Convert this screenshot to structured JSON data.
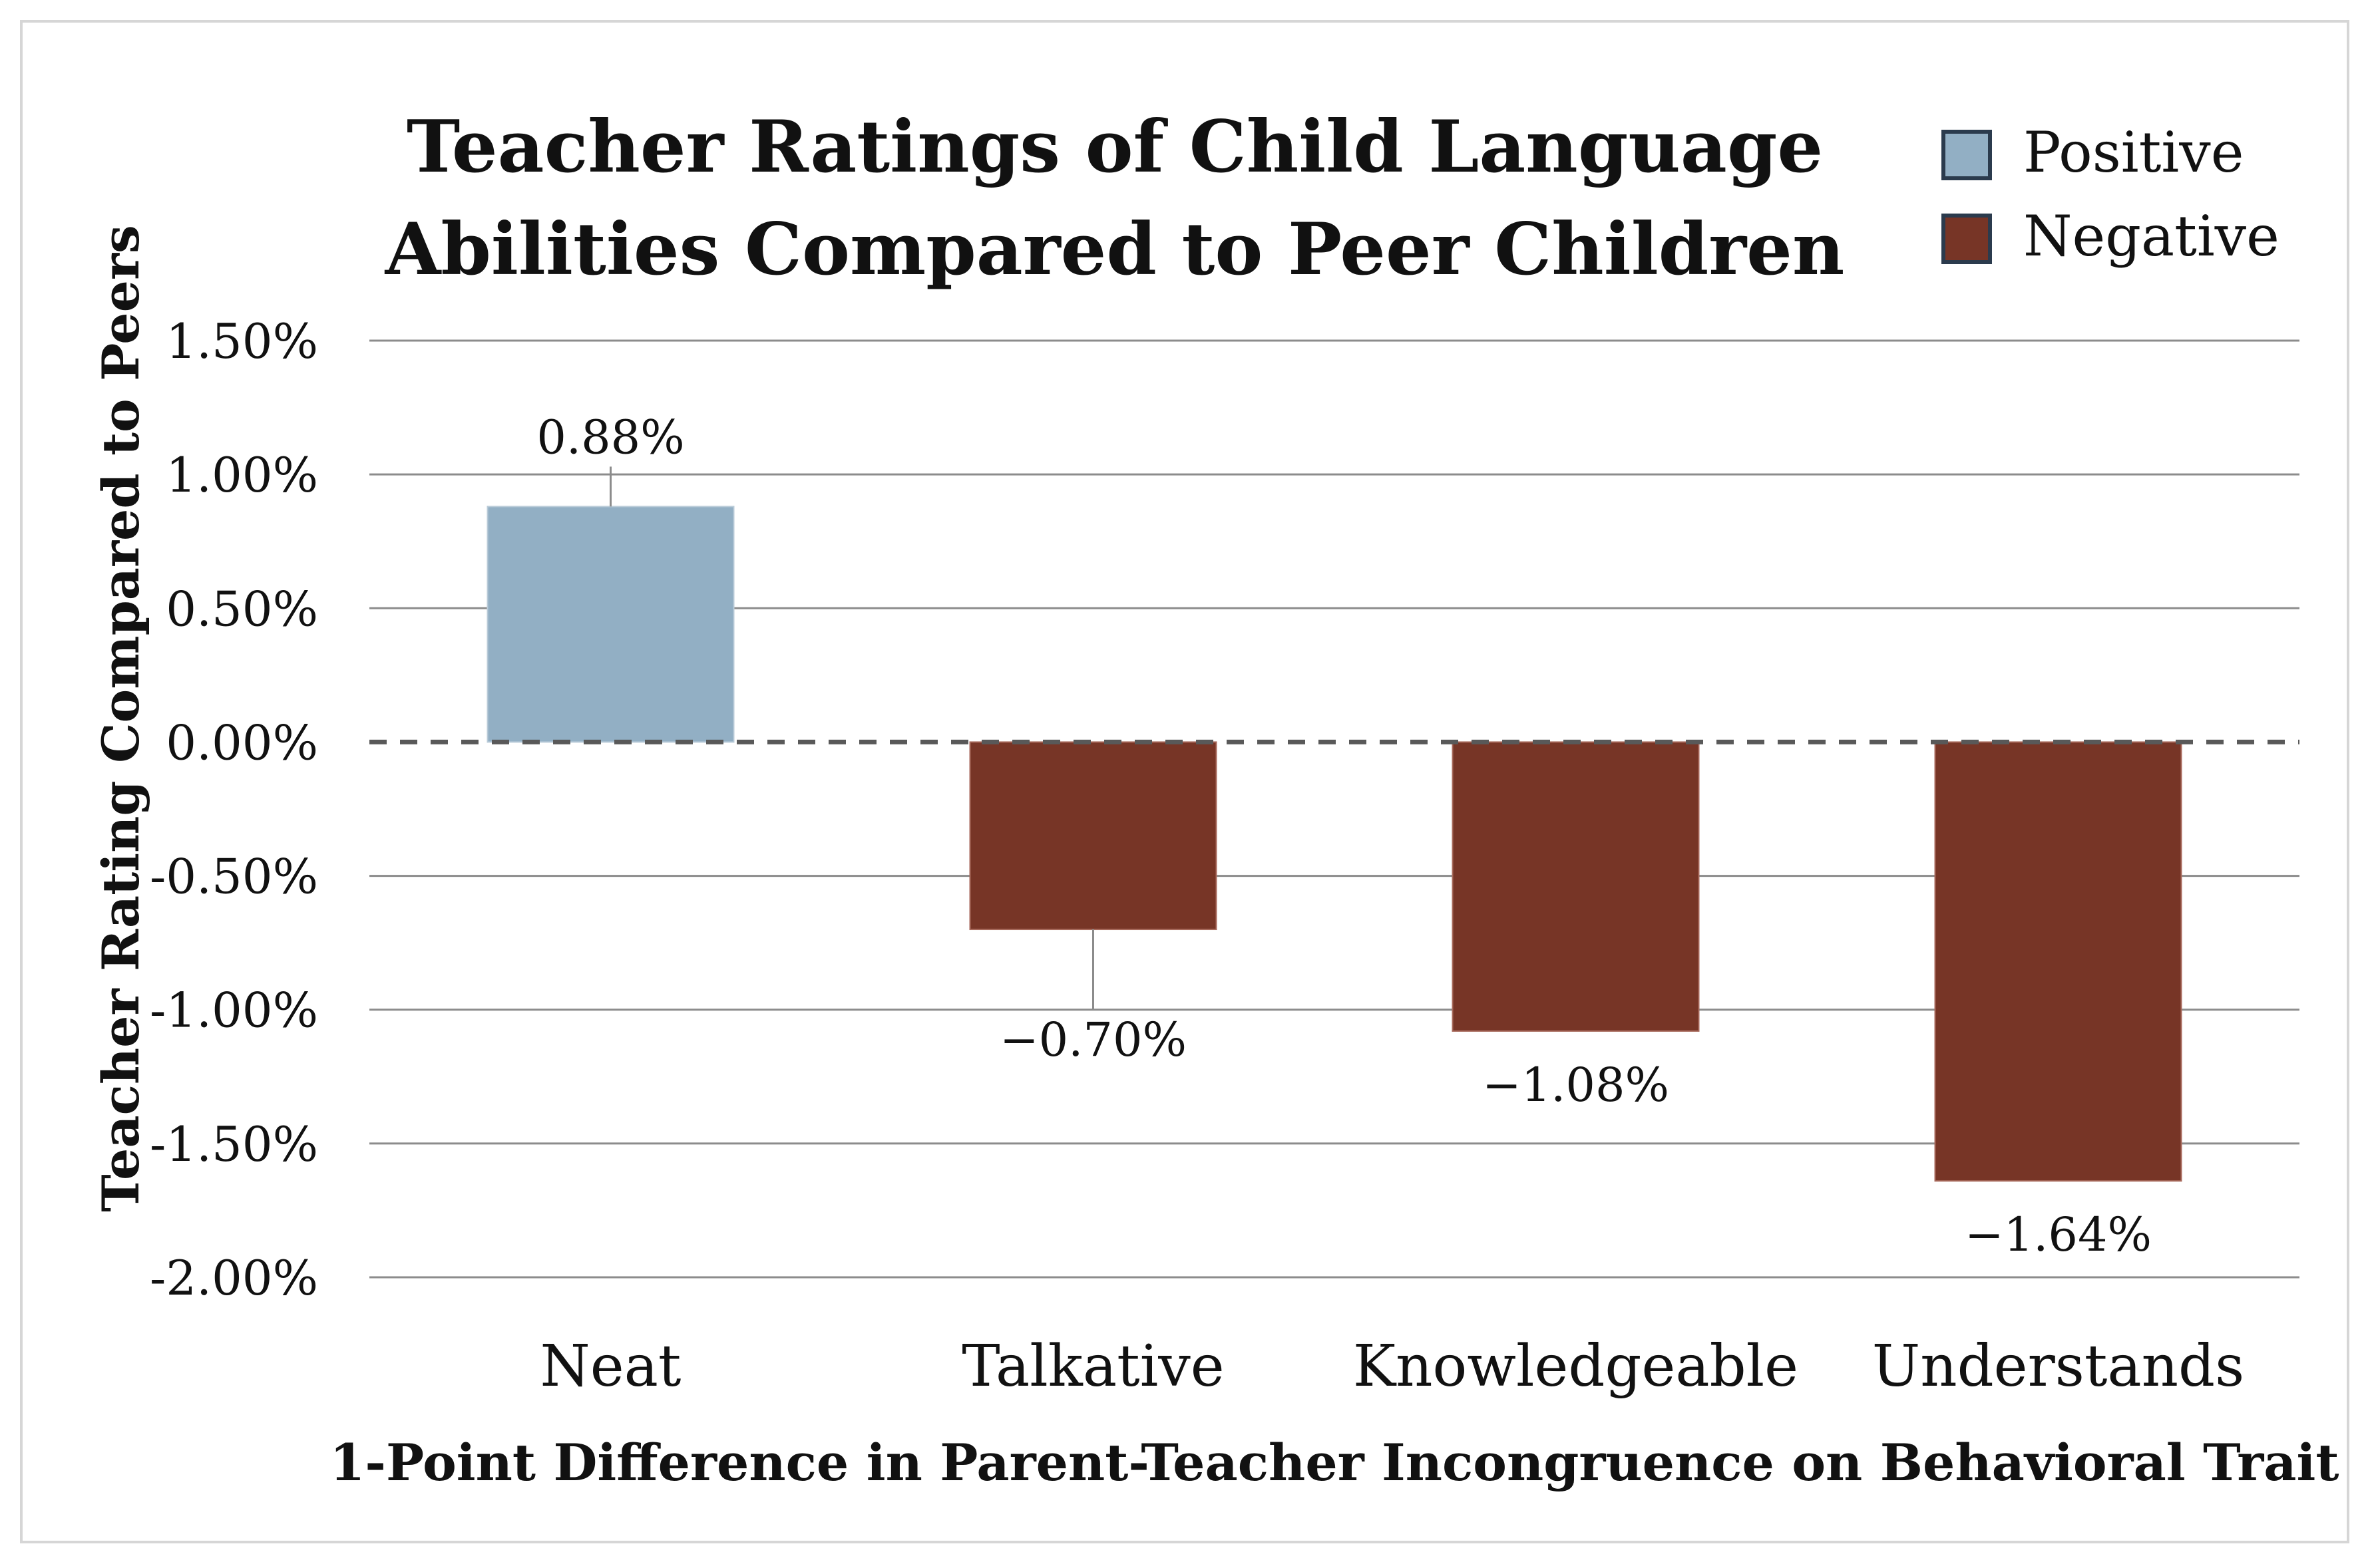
{
  "chart_data": {
    "type": "bar",
    "title_lines": [
      "Teacher Ratings of Child Language",
      "Abilities Compared to Peer Children"
    ],
    "xlabel": "1-Point Difference in Parent-Teacher Incongruence on Behavioral Trait",
    "ylabel": "Teacher Rating Compared to Peers",
    "categories": [
      "Neat",
      "Talkative",
      "Knowledgeable",
      "Understands"
    ],
    "values": [
      0.88,
      -0.7,
      -1.08,
      -1.64
    ],
    "value_labels": [
      "0.88%",
      "−0.70%",
      "−1.08%",
      "−1.64%"
    ],
    "ylim": [
      -2.0,
      1.5
    ],
    "yticks": [
      1.5,
      1.0,
      0.5,
      0.0,
      -0.5,
      -1.0,
      -1.5,
      -2.0
    ],
    "ytick_labels": [
      "1.50%",
      "1.00%",
      "0.50%",
      "0.00%",
      "-0.50%",
      "-1.00%",
      "-1.50%",
      "-2.00%"
    ],
    "grid": true,
    "zero_line": "dashed",
    "legend": {
      "position": "top-right",
      "entries": [
        {
          "label": "Positive",
          "color": "#92afc4"
        },
        {
          "label": "Negative",
          "color": "#773526"
        }
      ]
    },
    "colors": {
      "positive": "#92afc4",
      "negative": "#773526",
      "grid": "#8c8c8c",
      "zero_line": "#595959"
    }
  }
}
